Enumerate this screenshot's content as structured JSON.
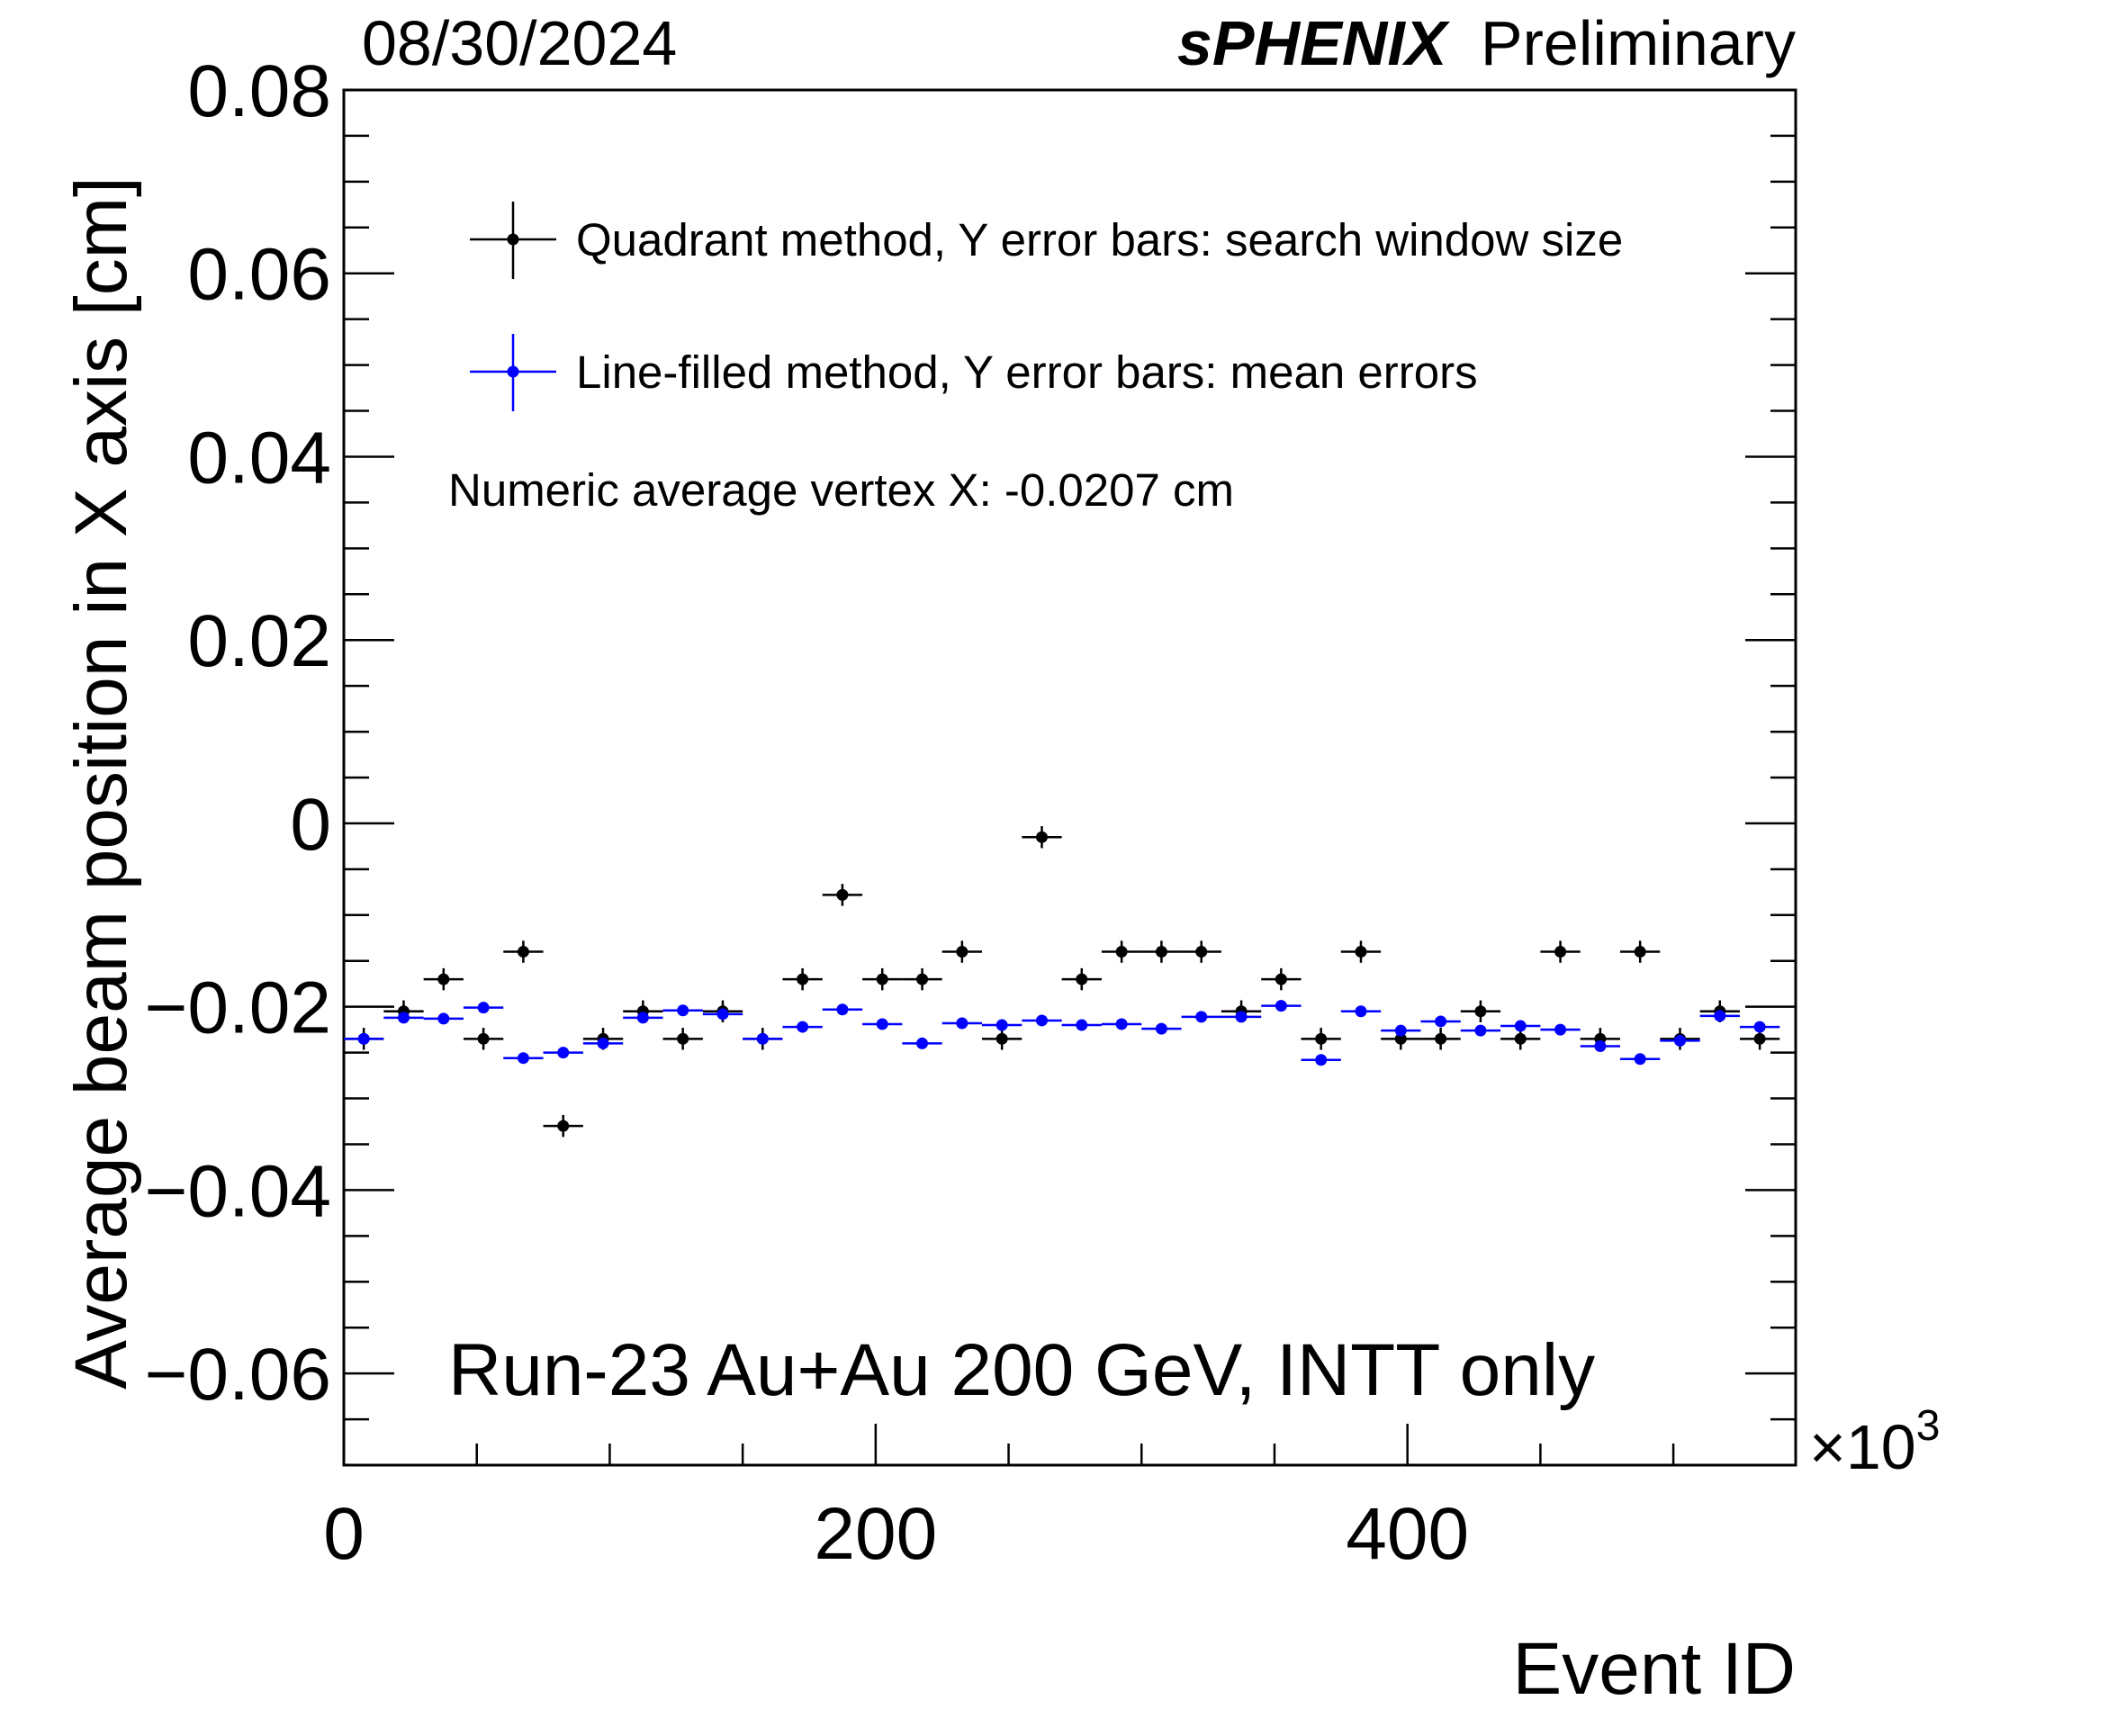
{
  "header": {
    "date": "08/30/2024",
    "experiment": "sPHENIX",
    "status": "Preliminary"
  },
  "chart_data": {
    "type": "scatter",
    "title": "",
    "xlabel": "Event ID",
    "ylabel": "Average beam position in X axis [cm]",
    "x_multiplier": "×10",
    "x_multiplier_exp": "3",
    "xlim": [
      0,
      546
    ],
    "ylim": [
      -0.07,
      0.08
    ],
    "x_ticks": [
      0,
      200,
      400
    ],
    "x_tick_labels": [
      "0",
      "200",
      "400"
    ],
    "y_ticks": [
      -0.06,
      -0.04,
      -0.02,
      0,
      0.02,
      0.04,
      0.06,
      0.08
    ],
    "y_tick_labels": [
      "−0.06",
      "−0.04",
      "−0.02",
      "0",
      "0.02",
      "0.04",
      "0.06",
      "0.08"
    ],
    "bin_width": 15,
    "grid": false,
    "legend_position": "top-left",
    "series": [
      {
        "name": "Quadrant method, Y error bars: search window size",
        "color": "#000000",
        "x": [
          7.5,
          22.5,
          37.5,
          52.5,
          67.5,
          82.5,
          97.5,
          112.5,
          127.5,
          142.5,
          157.5,
          172.5,
          187.5,
          202.5,
          217.5,
          232.5,
          247.5,
          262.5,
          277.5,
          292.5,
          307.5,
          322.5,
          337.5,
          352.5,
          367.5,
          382.5,
          397.5,
          412.5,
          427.5,
          442.5,
          457.5,
          472.5,
          487.5,
          502.5,
          517.5,
          532.5
        ],
        "y": [
          -0.0235,
          -0.0205,
          -0.017,
          -0.0235,
          -0.014,
          -0.033,
          -0.0235,
          -0.0205,
          -0.0235,
          -0.0205,
          -0.0235,
          -0.017,
          -0.0078,
          -0.017,
          -0.017,
          -0.014,
          -0.0235,
          -0.0015,
          -0.017,
          -0.014,
          -0.014,
          -0.014,
          -0.0205,
          -0.017,
          -0.0235,
          -0.014,
          -0.0235,
          -0.0235,
          -0.0205,
          -0.0235,
          -0.014,
          -0.0235,
          -0.014,
          -0.0235,
          -0.0205,
          -0.0235
        ],
        "y_err": 0.0012
      },
      {
        "name": "Line-filled method, Y error bars: mean errors",
        "color": "#0000ff",
        "x": [
          7.5,
          22.5,
          37.5,
          52.5,
          67.5,
          82.5,
          97.5,
          112.5,
          127.5,
          142.5,
          157.5,
          172.5,
          187.5,
          202.5,
          217.5,
          232.5,
          247.5,
          262.5,
          277.5,
          292.5,
          307.5,
          322.5,
          337.5,
          352.5,
          367.5,
          382.5,
          397.5,
          412.5,
          427.5,
          442.5,
          457.5,
          472.5,
          487.5,
          502.5,
          517.5,
          532.5
        ],
        "y": [
          -0.0235,
          -0.0212,
          -0.0213,
          -0.0201,
          -0.0256,
          -0.025,
          -0.024,
          -0.0212,
          -0.0204,
          -0.0208,
          -0.0235,
          -0.0222,
          -0.0203,
          -0.0219,
          -0.024,
          -0.0218,
          -0.022,
          -0.0215,
          -0.022,
          -0.0219,
          -0.0224,
          -0.0211,
          -0.0211,
          -0.0199,
          -0.0258,
          -0.0205,
          -0.0226,
          -0.0216,
          -0.0226,
          -0.0221,
          -0.0225,
          -0.0243,
          -0.0257,
          -0.0237,
          -0.021,
          -0.0222
        ],
        "y_err": 0.0002
      }
    ],
    "annotations": [
      "Numeric average vertex X: -0.0207 cm",
      "Run-23 Au+Au 200 GeV, INTT only"
    ]
  }
}
